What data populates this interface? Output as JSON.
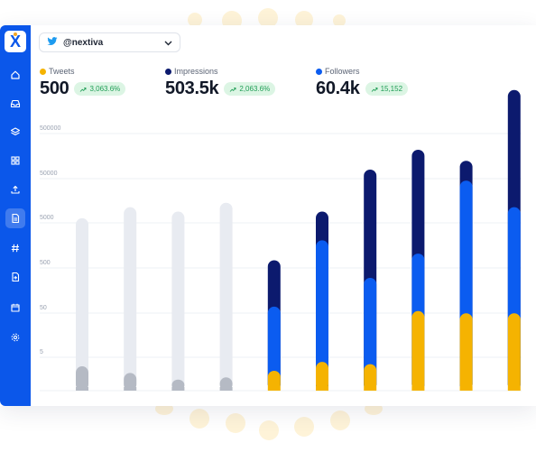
{
  "account": {
    "handle": "@nextiva",
    "platform_icon": "twitter-icon",
    "dropdown_icon": "chevron-down-icon"
  },
  "sidebar": {
    "logo": "X",
    "items": [
      {
        "icon": "home-icon"
      },
      {
        "icon": "inbox-icon"
      },
      {
        "icon": "layers-icon"
      },
      {
        "icon": "grid-icon"
      },
      {
        "icon": "upload-icon"
      },
      {
        "icon": "document-icon",
        "active": true
      },
      {
        "icon": "hashtag-icon"
      },
      {
        "icon": "add-file-icon"
      },
      {
        "icon": "calendar-icon"
      },
      {
        "icon": "gear-icon"
      }
    ]
  },
  "stats": [
    {
      "label": "Tweets",
      "value": "500",
      "change": "3,063.6%",
      "color": "#f5b301"
    },
    {
      "label": "Impressions",
      "value": "503.5k",
      "change": "2,063.6%",
      "color": "#0c1a6e"
    },
    {
      "label": "Followers",
      "value": "60.4k",
      "change": "15,152",
      "color": "#0b5cf0"
    }
  ],
  "colors": {
    "accent": "#0b57ea",
    "tweets": "#f5b301",
    "impressions": "#0c1a6e",
    "followers": "#0b5cf0",
    "faded": "#e8ebf1",
    "faded_base": "#b5bac4",
    "positive": "#1f9d55"
  },
  "chart_data": {
    "type": "bar",
    "stacked": true,
    "yscale": "log",
    "ytick_labels": [
      "500000",
      "50000",
      "5000",
      "500",
      "50",
      "5"
    ],
    "bars": [
      {
        "faded": true,
        "total": 0.78,
        "base": 0.11
      },
      {
        "faded": true,
        "total": 0.83,
        "base": 0.08
      },
      {
        "faded": true,
        "total": 0.81,
        "base": 0.05
      },
      {
        "faded": true,
        "total": 0.85,
        "base": 0.06
      },
      {
        "tweets": 0.09,
        "followers": 0.38,
        "total": 0.59
      },
      {
        "tweets": 0.13,
        "followers": 0.68,
        "total": 0.81
      },
      {
        "tweets": 0.12,
        "followers": 0.51,
        "total": 1.0
      },
      {
        "tweets": 0.36,
        "followers": 0.62,
        "total": 1.09
      },
      {
        "tweets": 0.35,
        "followers": 0.95,
        "total": 1.04
      },
      {
        "tweets": 0.35,
        "followers": 0.83,
        "total": 1.36
      }
    ],
    "grid": true,
    "legend": "top"
  }
}
